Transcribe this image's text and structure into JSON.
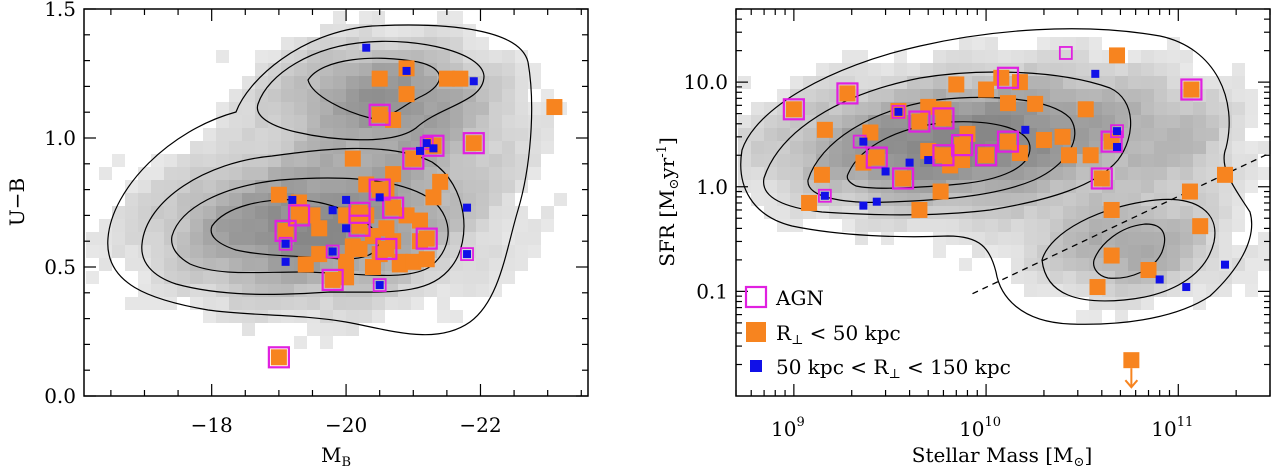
{
  "chart_data": [
    {
      "type": "scatter",
      "panel": "left",
      "xlabel_main": "M",
      "xlabel_sub": "B",
      "ylabel": "U−B",
      "xlim": [
        -16.1,
        -23.6
      ],
      "ylim": [
        0.0,
        1.5
      ],
      "xticks": [
        -18,
        -20,
        -22
      ],
      "xtick_labels": [
        "−18",
        "−20",
        "−22"
      ],
      "yticks": [
        0.0,
        0.5,
        1.0,
        1.5
      ],
      "ytick_labels": [
        "0.0",
        "0.5",
        "1.0",
        "1.5"
      ],
      "background": "grey density map with black contours",
      "series": [
        {
          "key": "orange",
          "color": "#f7841f",
          "points": [
            [
              -20.5,
              1.23
            ],
            [
              -20.9,
              1.27
            ],
            [
              -21.5,
              1.23
            ],
            [
              -21.7,
              1.23
            ],
            [
              -20.7,
              1.07
            ],
            [
              -20.9,
              1.17
            ],
            [
              -21.3,
              0.97
            ],
            [
              -21.0,
              0.92
            ],
            [
              -20.1,
              0.92
            ],
            [
              -20.7,
              0.86
            ],
            [
              -21.4,
              0.83
            ],
            [
              -20.3,
              0.82
            ],
            [
              -20.6,
              0.8
            ],
            [
              -19.0,
              0.78
            ],
            [
              -21.3,
              0.77
            ],
            [
              -19.3,
              0.75
            ],
            [
              -19.5,
              0.7
            ],
            [
              -20.0,
              0.7
            ],
            [
              -20.3,
              0.7
            ],
            [
              -20.9,
              0.7
            ],
            [
              -21.1,
              0.68
            ],
            [
              -19.6,
              0.65
            ],
            [
              -20.6,
              0.65
            ],
            [
              -20.4,
              0.62
            ],
            [
              -20.7,
              0.6
            ],
            [
              -20.1,
              0.58
            ],
            [
              -21.1,
              0.6
            ],
            [
              -20.2,
              0.57
            ],
            [
              -20.5,
              0.55
            ],
            [
              -20.8,
              0.52
            ],
            [
              -19.6,
              0.55
            ],
            [
              -19.4,
              0.51
            ],
            [
              -20.0,
              0.52
            ],
            [
              -20.4,
              0.5
            ],
            [
              -20.0,
              0.46
            ],
            [
              -20.8,
              0.51
            ],
            [
              -21.0,
              0.52
            ],
            [
              -21.2,
              0.53
            ],
            [
              -23.1,
              1.12
            ],
            [
              -21.9,
              0.98
            ],
            [
              -20.5,
              1.09
            ],
            [
              -21.0,
              0.92
            ],
            [
              -21.3,
              0.97
            ],
            [
              -19.3,
              0.7
            ],
            [
              -19.1,
              0.64
            ],
            [
              -20.2,
              0.71
            ],
            [
              -20.2,
              0.66
            ],
            [
              -20.5,
              0.8
            ],
            [
              -20.7,
              0.73
            ],
            [
              -20.6,
              0.57
            ],
            [
              -21.2,
              0.61
            ],
            [
              -19.8,
              0.45
            ],
            [
              -19.0,
              0.15
            ]
          ]
        },
        {
          "key": "agn",
          "color": "#e020e0",
          "points": [
            [
              -20.5,
              1.09
            ],
            [
              -21.0,
              0.92
            ],
            [
              -21.3,
              0.97
            ],
            [
              -21.9,
              0.98
            ],
            [
              -19.3,
              0.7
            ],
            [
              -19.1,
              0.64
            ],
            [
              -20.2,
              0.71
            ],
            [
              -20.2,
              0.66
            ],
            [
              -20.5,
              0.8
            ],
            [
              -20.7,
              0.73
            ],
            [
              -20.6,
              0.57
            ],
            [
              -21.2,
              0.61
            ],
            [
              -19.8,
              0.45
            ],
            [
              -19.0,
              0.15
            ]
          ]
        },
        {
          "key": "agn_small",
          "color": "#e020e0",
          "points": [
            [
              -21.2,
              0.98
            ],
            [
              -19.1,
              0.59
            ],
            [
              -19.8,
              0.56
            ],
            [
              -20.5,
              0.43
            ],
            [
              -21.8,
              0.55
            ]
          ]
        },
        {
          "key": "blue",
          "color": "#1010e8",
          "points": [
            [
              -20.3,
              1.35
            ],
            [
              -20.9,
              1.26
            ],
            [
              -21.9,
              1.22
            ],
            [
              -21.1,
              0.95
            ],
            [
              -21.3,
              0.96
            ],
            [
              -21.2,
              0.98
            ],
            [
              -19.2,
              0.76
            ],
            [
              -20.0,
              0.76
            ],
            [
              -20.5,
              0.77
            ],
            [
              -19.8,
              0.72
            ],
            [
              -20.0,
              0.65
            ],
            [
              -19.1,
              0.59
            ],
            [
              -19.8,
              0.56
            ],
            [
              -19.1,
              0.52
            ],
            [
              -20.5,
              0.43
            ],
            [
              -21.8,
              0.55
            ],
            [
              -21.8,
              0.73
            ]
          ]
        }
      ]
    },
    {
      "type": "scatter",
      "panel": "right",
      "xlabel_main": "Stellar Mass [M",
      "xlabel_sym": "⊙",
      "xlabel_end": "]",
      "ylabel_main": "SFR [M",
      "ylabel_sym": "⊙",
      "ylabel_unit": "yr",
      "ylabel_exp": "-1",
      "ylabel_end": "]",
      "xscale": "log",
      "yscale": "log",
      "xlim": [
        500000000,
        300000000000
      ],
      "ylim": [
        0.01,
        50
      ],
      "xticks": [
        1000000000,
        10000000000,
        100000000000
      ],
      "xtick_base": "10",
      "xtick_exps": [
        "9",
        "10",
        "11"
      ],
      "yticks": [
        0.1,
        1.0,
        10.0
      ],
      "ytick_labels": [
        "0.1",
        "1.0",
        "10.0"
      ],
      "dashed_line": [
        [
          850000000000,
          0.095
        ],
        [
          3000000000000,
          2.1
        ]
      ],
      "background": "grey density map with black contours",
      "series": [
        {
          "key": "orange",
          "color": "#f7841f",
          "points": [
            [
              1000000000,
              5.5
            ],
            [
              1900000000,
              7.8
            ],
            [
              1450000000,
              3.5
            ],
            [
              2500000000,
              3.3
            ],
            [
              2300000000,
              1.7
            ],
            [
              3500000000,
              5.3
            ],
            [
              5000000000,
              5.8
            ],
            [
              6000000000,
              5.5
            ],
            [
              7000000000,
              9.5
            ],
            [
              10000000000,
              8.5
            ],
            [
              12000000000,
              11
            ],
            [
              13000000000,
              6.3
            ],
            [
              15000000000,
              10
            ],
            [
              18000000000,
              6.2
            ],
            [
              48000000000,
              18
            ],
            [
              33000000000,
              5.5
            ],
            [
              25000000000,
              3.0
            ],
            [
              15000000000,
              2.1
            ],
            [
              20000000000,
              2.8
            ],
            [
              27000000000,
              2.0
            ],
            [
              35000000000,
              2.0
            ],
            [
              45000000000,
              2.7
            ],
            [
              5000000000,
              2.2
            ],
            [
              6500000000,
              1.6
            ],
            [
              7500000000,
              1.8
            ],
            [
              4500000000,
              4.2
            ],
            [
              6000000000,
              4.5
            ],
            [
              8000000000,
              3.2
            ],
            [
              1200000000,
              0.7
            ],
            [
              1400000000,
              1.3
            ],
            [
              2700000000,
              1.9
            ],
            [
              3700000000,
              1.2
            ],
            [
              5800000000,
              0.9
            ],
            [
              4500000000,
              0.6
            ],
            [
              45000000000,
              0.6
            ],
            [
              115000000000,
              0.9
            ],
            [
              175000000000,
              1.3
            ],
            [
              130000000000,
              0.42
            ],
            [
              45000000000,
              0.22
            ],
            [
              70000000000,
              0.16
            ],
            [
              38000000000,
              0.11
            ],
            [
              57000000000,
              0.022
            ],
            [
              117000000000,
              8.5
            ],
            [
              40000000000,
              1.2
            ],
            [
              7500000000,
              2.5
            ],
            [
              6000000000,
              2.0
            ],
            [
              10000000000,
              2.0
            ],
            [
              13000000000,
              2.7
            ]
          ]
        },
        {
          "key": "agn",
          "color": "#e020e0",
          "points": [
            [
              1000000000,
              5.5
            ],
            [
              1900000000,
              7.8
            ],
            [
              13000000000,
              11
            ],
            [
              117000000000,
              8.5
            ],
            [
              4500000000,
              4.2
            ],
            [
              6000000000,
              4.5
            ],
            [
              2700000000,
              1.9
            ],
            [
              3700000000,
              1.2
            ],
            [
              7500000000,
              2.5
            ],
            [
              6000000000,
              2.0
            ],
            [
              10000000000,
              2.0
            ],
            [
              13000000000,
              2.7
            ],
            [
              40000000000,
              1.2
            ],
            [
              45000000000,
              2.7
            ]
          ]
        },
        {
          "key": "agn_small",
          "color": "#e020e0",
          "points": [
            [
              26000000000,
              19
            ],
            [
              3500000000,
              5.2
            ],
            [
              2200000000,
              2.7
            ],
            [
              1450000000,
              0.82
            ],
            [
              48000000000,
              3.4
            ]
          ]
        },
        {
          "key": "blue",
          "color": "#1010e8",
          "points": [
            [
              37000000000,
              12
            ],
            [
              2300000000,
              2.7
            ],
            [
              3500000000,
              5.2
            ],
            [
              4000000000,
              1.7
            ],
            [
              5000000000,
              1.8
            ],
            [
              3000000000,
              1.4
            ],
            [
              2700000000,
              0.72
            ],
            [
              2300000000,
              0.66
            ],
            [
              1450000000,
              0.82
            ],
            [
              16000000000,
              3.5
            ],
            [
              48000000000,
              3.4
            ],
            [
              48000000000,
              2.4
            ],
            [
              80000000000,
              0.13
            ],
            [
              110000000000,
              0.11
            ],
            [
              175000000000,
              0.18
            ]
          ]
        }
      ],
      "upper_limit": {
        "x": 57000000000,
        "y": 0.022,
        "color": "#f7841f"
      },
      "legend": {
        "placement": "bottom-left",
        "entries": [
          {
            "key": "agn",
            "label": "AGN"
          },
          {
            "key": "orange",
            "label_main": "R",
            "label_sub": "⊥",
            "label_rest": " < 50 kpc"
          },
          {
            "key": "blue",
            "label_pre": "50 kpc < R",
            "label_sub": "⊥",
            "label_rest": " < 150 kpc"
          }
        ]
      }
    }
  ]
}
